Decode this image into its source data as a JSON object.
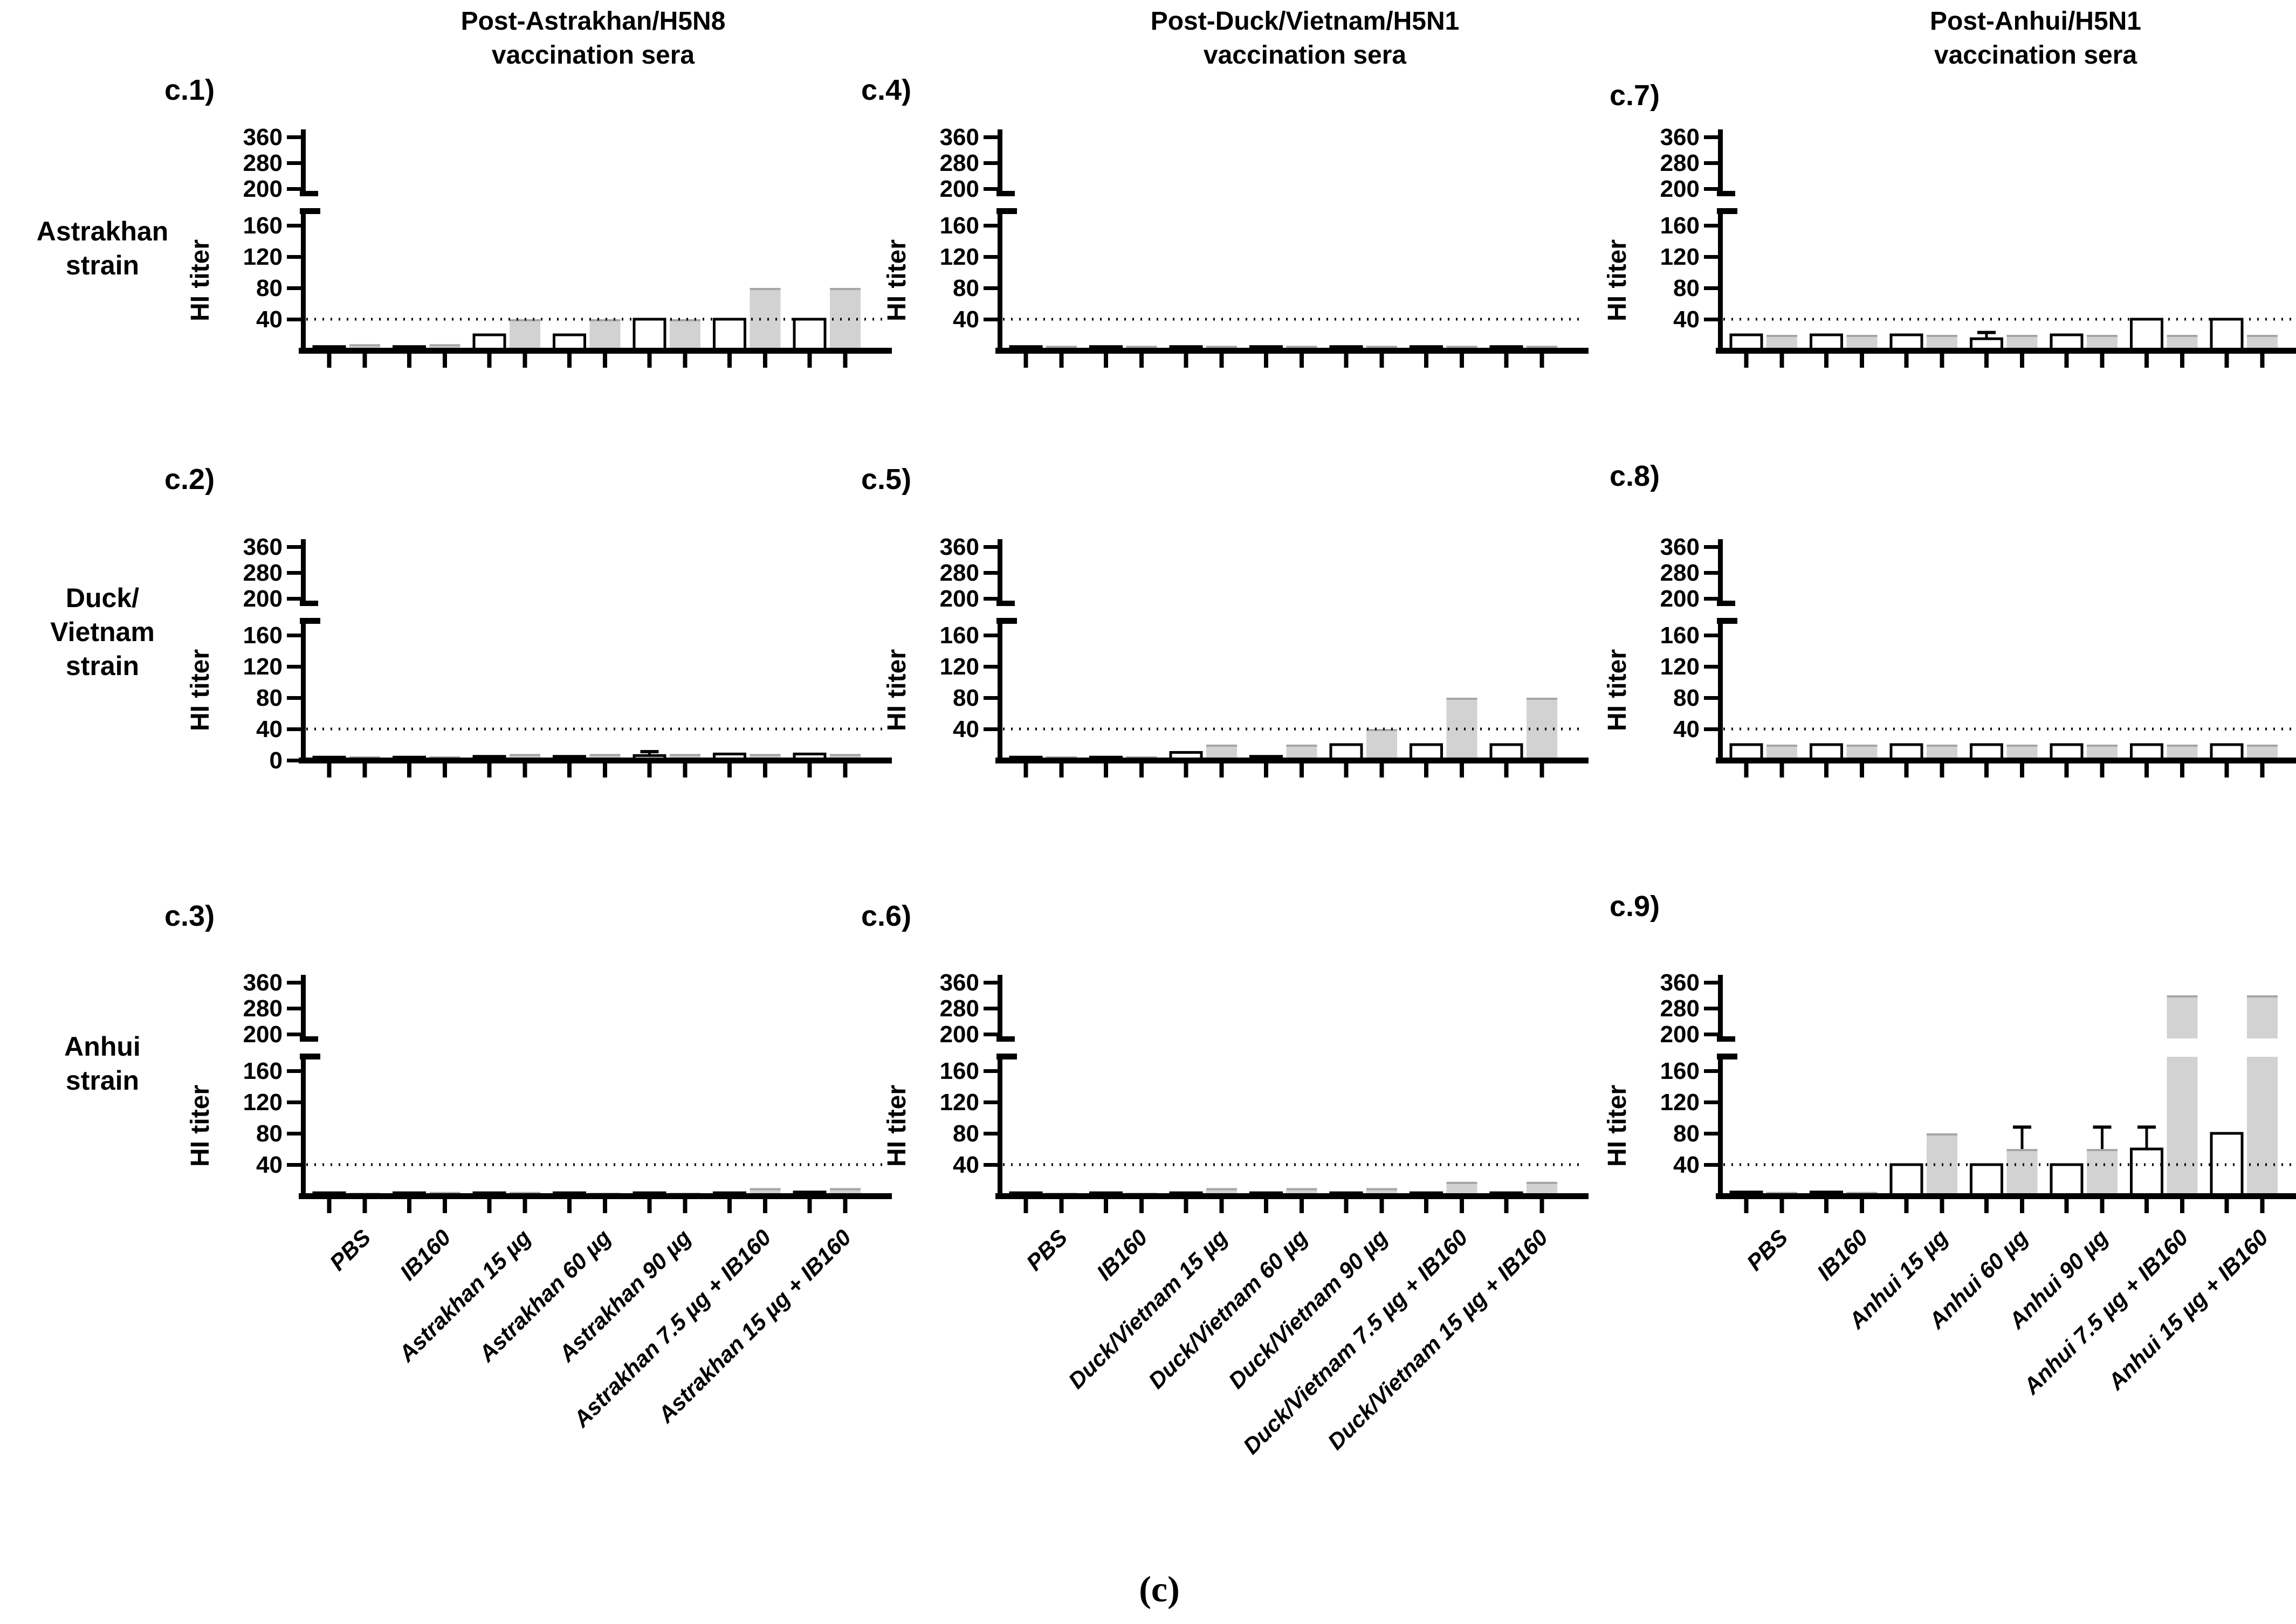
{
  "figure_label": "(c)",
  "axis": {
    "ylabel": "HI titer",
    "upper_ticks": [
      360,
      280,
      200
    ],
    "lower_ticks": [
      160,
      120,
      80,
      40
    ],
    "zero_label": "0",
    "axis_break": true,
    "lower_segment_range": [
      0,
      175
    ],
    "upper_segment_range": [
      200,
      360
    ],
    "threshold_line_value": 40,
    "grid": "off",
    "legend": "none"
  },
  "colors": {
    "open_bar_fill": "#ffffff",
    "open_bar_stroke": "#000000",
    "gray_bar_fill": "#d2d2d2",
    "gray_bar_edge": "#a6a6a6",
    "axis_color": "#000000",
    "background": "#ffffff"
  },
  "columns": [
    {
      "title": "Post-Astrakhan/H5N8 vaccination sera"
    },
    {
      "title": "Post-Duck/Vietnam/H5N1 vaccination sera"
    },
    {
      "title": "Post-Anhui/H5N1 vaccination sera"
    }
  ],
  "rows": [
    {
      "label_lines": [
        "Astrakhan",
        "strain"
      ]
    },
    {
      "label_lines": [
        "Duck/",
        "Vietnam",
        "strain"
      ]
    },
    {
      "label_lines": [
        "Anhui",
        "strain"
      ]
    }
  ],
  "chart_data": [
    {
      "id": "c1",
      "label": "c.1)",
      "type": "bar",
      "row": 0,
      "col": 0,
      "title_context": "Astrakhan strain vs Post-Astrakhan/H5N8 vaccination sera",
      "ylabel": "HI titer",
      "threshold": 40,
      "show_zero_tick": false,
      "categories": [
        "PBS",
        "IB160",
        "Astrakhan 15 µg",
        "Astrakhan 60 µg",
        "Astrakhan 90 µg",
        "Astrakhan 7.5 µg + IB160",
        "Astrakhan 15 µg + IB160"
      ],
      "series": [
        {
          "name": "open",
          "values": [
            5,
            5,
            20,
            20,
            40,
            40,
            40
          ],
          "err_top": [
            null,
            null,
            null,
            null,
            null,
            null,
            null
          ]
        },
        {
          "name": "gray",
          "values": [
            8,
            8,
            40,
            40,
            40,
            80,
            80
          ],
          "err_top": [
            null,
            null,
            null,
            null,
            null,
            null,
            null
          ]
        }
      ]
    },
    {
      "id": "c2",
      "label": "c.2)",
      "type": "bar",
      "row": 1,
      "col": 0,
      "title_context": "Duck/Vietnam strain vs Post-Astrakhan/H5N8 vaccination sera",
      "ylabel": "HI titer",
      "threshold": 40,
      "show_zero_tick": true,
      "categories": [
        "PBS",
        "IB160",
        "Astrakhan 15 µg",
        "Astrakhan 60 µg",
        "Astrakhan 90 µg",
        "Astrakhan 7.5 µg + IB160",
        "Astrakhan 15 µg + IB160"
      ],
      "series": [
        {
          "name": "open",
          "values": [
            4,
            4,
            5,
            5,
            6,
            8,
            8
          ],
          "err_top": [
            null,
            null,
            null,
            null,
            11,
            null,
            null
          ]
        },
        {
          "name": "gray",
          "values": [
            5,
            5,
            8,
            8,
            8,
            8,
            8
          ],
          "err_top": [
            null,
            null,
            null,
            null,
            null,
            null,
            null
          ]
        }
      ]
    },
    {
      "id": "c3",
      "label": "c.3)",
      "type": "bar",
      "row": 2,
      "col": 0,
      "title_context": "Anhui strain vs Post-Astrakhan/H5N8 vaccination sera",
      "ylabel": "HI titer",
      "threshold": 40,
      "show_zero_tick": false,
      "categories": [
        "PBS",
        "IB160",
        "Astrakhan 15 µg",
        "Astrakhan 60 µg",
        "Astrakhan 90 µg",
        "Astrakhan 7.5 µg + IB160",
        "Astrakhan 15 µg + IB160"
      ],
      "series": [
        {
          "name": "open",
          "values": [
            4,
            4,
            4,
            4,
            4,
            4,
            5
          ],
          "err_top": [
            null,
            null,
            null,
            null,
            null,
            null,
            null
          ]
        },
        {
          "name": "gray",
          "values": [
            4,
            5,
            5,
            4,
            4,
            10,
            10
          ],
          "err_top": [
            null,
            null,
            null,
            null,
            null,
            null,
            null
          ]
        }
      ]
    },
    {
      "id": "c4",
      "label": "c.4)",
      "type": "bar",
      "row": 0,
      "col": 1,
      "title_context": "Astrakhan strain vs Post-Duck/Vietnam/H5N1 vaccination sera",
      "ylabel": "HI titer",
      "threshold": 40,
      "show_zero_tick": false,
      "categories": [
        "PBS",
        "IB160",
        "Duck/Vietnam 15 µg",
        "Duck/Vietnam 60 µg",
        "Duck/Vietnam 90 µg",
        "Duck/Vietnam 7.5 µg + IB160",
        "Duck/Vietnam 15 µg + IB160"
      ],
      "series": [
        {
          "name": "open",
          "values": [
            5,
            5,
            5,
            5,
            5,
            5,
            5
          ],
          "err_top": [
            null,
            null,
            null,
            null,
            null,
            null,
            null
          ]
        },
        {
          "name": "gray",
          "values": [
            6,
            6,
            6,
            6,
            6,
            6,
            6
          ],
          "err_top": [
            null,
            null,
            null,
            null,
            null,
            null,
            null
          ]
        }
      ]
    },
    {
      "id": "c5",
      "label": "c.5)",
      "type": "bar",
      "row": 1,
      "col": 1,
      "title_context": "Duck/Vietnam strain vs Post-Duck/Vietnam/H5N1 vaccination sera",
      "ylabel": "HI titer",
      "threshold": 40,
      "show_zero_tick": false,
      "categories": [
        "PBS",
        "IB160",
        "Duck/Vietnam 15 µg",
        "Duck/Vietnam 60 µg",
        "Duck/Vietnam 90 µg",
        "Duck/Vietnam 7.5 µg + IB160",
        "Duck/Vietnam 15 µg + IB160"
      ],
      "series": [
        {
          "name": "open",
          "values": [
            4,
            4,
            10,
            5,
            20,
            20,
            20
          ],
          "err_top": [
            null,
            null,
            null,
            null,
            null,
            null,
            null
          ]
        },
        {
          "name": "gray",
          "values": [
            5,
            5,
            20,
            20,
            40,
            80,
            80
          ],
          "err_top": [
            null,
            null,
            null,
            null,
            null,
            null,
            null
          ]
        }
      ]
    },
    {
      "id": "c6",
      "label": "c.6)",
      "type": "bar",
      "row": 2,
      "col": 1,
      "title_context": "Anhui strain vs Post-Duck/Vietnam/H5N1 vaccination sera",
      "ylabel": "HI titer",
      "threshold": 40,
      "show_zero_tick": false,
      "categories": [
        "PBS",
        "IB160",
        "Duck/Vietnam 15 µg",
        "Duck/Vietnam 60 µg",
        "Duck/Vietnam 90 µg",
        "Duck/Vietnam 7.5 µg + IB160",
        "Duck/Vietnam 15 µg + IB160"
      ],
      "series": [
        {
          "name": "open",
          "values": [
            4,
            4,
            4,
            4,
            4,
            4,
            4
          ],
          "err_top": [
            null,
            null,
            null,
            null,
            null,
            null,
            null
          ]
        },
        {
          "name": "gray",
          "values": [
            4,
            4,
            10,
            10,
            10,
            18,
            18
          ],
          "err_top": [
            null,
            null,
            null,
            null,
            null,
            null,
            null
          ]
        }
      ]
    },
    {
      "id": "c7",
      "label": "c.7)",
      "type": "bar",
      "row": 0,
      "col": 2,
      "title_context": "Astrakhan strain vs Post-Anhui/H5N1 vaccination sera",
      "ylabel": "HI titer",
      "threshold": 40,
      "show_zero_tick": false,
      "categories": [
        "PBS",
        "IB160",
        "Anhui 15 µg",
        "Anhui 60 µg",
        "Anhui 90 µg",
        "Anhui 7.5 µg + IB160",
        "Anhui 15 µg + IB160"
      ],
      "series": [
        {
          "name": "open",
          "values": [
            20,
            20,
            20,
            15,
            20,
            40,
            40
          ],
          "err_top": [
            null,
            null,
            null,
            23,
            null,
            null,
            null
          ]
        },
        {
          "name": "gray",
          "values": [
            20,
            20,
            20,
            20,
            20,
            20,
            20
          ],
          "err_top": [
            null,
            null,
            null,
            null,
            null,
            null,
            null
          ]
        }
      ]
    },
    {
      "id": "c8",
      "label": "c.8)",
      "type": "bar",
      "row": 1,
      "col": 2,
      "title_context": "Duck/Vietnam strain vs Post-Anhui/H5N1 vaccination sera",
      "ylabel": "HI titer",
      "threshold": 40,
      "show_zero_tick": false,
      "categories": [
        "PBS",
        "IB160",
        "Anhui 15 µg",
        "Anhui 60 µg",
        "Anhui 90 µg",
        "Anhui 7.5 µg + IB160",
        "Anhui 15 µg + IB160"
      ],
      "series": [
        {
          "name": "open",
          "values": [
            20,
            20,
            20,
            20,
            20,
            20,
            20
          ],
          "err_top": [
            null,
            null,
            null,
            null,
            null,
            null,
            null
          ]
        },
        {
          "name": "gray",
          "values": [
            20,
            20,
            20,
            20,
            20,
            20,
            20
          ],
          "err_top": [
            null,
            null,
            null,
            null,
            null,
            null,
            null
          ]
        }
      ]
    },
    {
      "id": "c9",
      "label": "c.9)",
      "type": "bar",
      "row": 2,
      "col": 2,
      "title_context": "Anhui strain vs Post-Anhui/H5N1 vaccination sera",
      "ylabel": "HI titer",
      "threshold": 40,
      "show_zero_tick": false,
      "categories": [
        "PBS",
        "IB160",
        "Anhui 15 µg",
        "Anhui 60 µg",
        "Anhui 90 µg",
        "Anhui 7.5 µg + IB160",
        "Anhui 15 µg + IB160"
      ],
      "series": [
        {
          "name": "open",
          "values": [
            5,
            5,
            40,
            40,
            40,
            60,
            80
          ],
          "err_top": [
            null,
            null,
            null,
            null,
            null,
            88,
            null
          ]
        },
        {
          "name": "gray",
          "values": [
            5,
            5,
            80,
            60,
            60,
            320,
            320
          ],
          "err_top": [
            null,
            null,
            null,
            88,
            88,
            null,
            null
          ]
        }
      ]
    }
  ]
}
